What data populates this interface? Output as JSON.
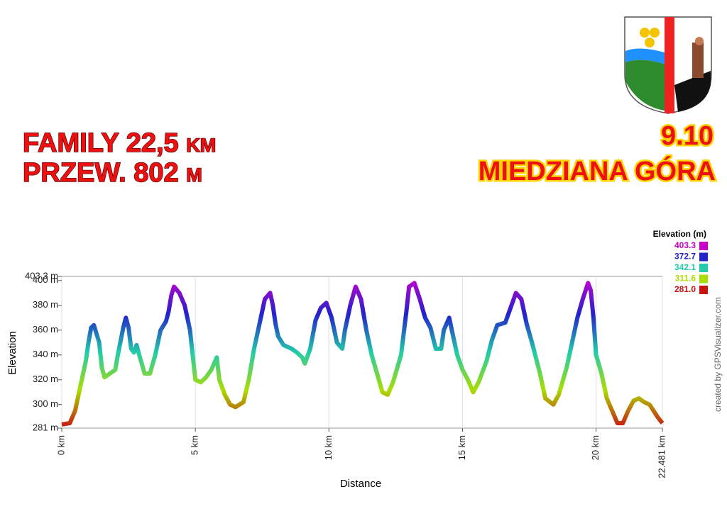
{
  "header": {
    "lines": [
      "FAMILY 22,5 km",
      "PRZEW. 802 m"
    ],
    "date": "9.10",
    "place": "MIEDZIANA GÓRA"
  },
  "chart_data": {
    "type": "line",
    "x_label": "Distance",
    "y_label": "Elevation",
    "credit": "created by GPSVisualizer.com",
    "xlim": [
      0,
      22.481
    ],
    "ylim": [
      281,
      403.3
    ],
    "grid": "x",
    "xticks": [
      {
        "value": 0,
        "label": "0 km"
      },
      {
        "value": 5,
        "label": "5 km"
      },
      {
        "value": 10,
        "label": "10 km"
      },
      {
        "value": 15,
        "label": "15 km"
      },
      {
        "value": 20,
        "label": "20 km"
      },
      {
        "value": 22.481,
        "label": "22.481 km"
      }
    ],
    "yticks": [
      {
        "value": 281,
        "label": "281 m"
      },
      {
        "value": 300,
        "label": "300 m"
      },
      {
        "value": 320,
        "label": "320 m"
      },
      {
        "value": 340,
        "label": "340 m"
      },
      {
        "value": 360,
        "label": "360 m"
      },
      {
        "value": 380,
        "label": "380 m"
      },
      {
        "value": 400,
        "label": "400 m"
      },
      {
        "value": 403.3,
        "label": "403.3 m"
      }
    ],
    "legend": {
      "title": "Elevation (m)",
      "entries": [
        {
          "value": 403.3,
          "color": "#cc00cc"
        },
        {
          "value": 372.7,
          "color": "#2222cc"
        },
        {
          "value": 342.1,
          "color": "#22ccaa"
        },
        {
          "value": 311.6,
          "color": "#aadd00"
        },
        {
          "value": 281,
          "label": "281.0",
          "color": "#cc1111"
        }
      ]
    },
    "x": [
      0,
      0.3,
      0.5,
      0.7,
      0.9,
      1.0,
      1.1,
      1.2,
      1.4,
      1.5,
      1.6,
      1.8,
      2.0,
      2.1,
      2.3,
      2.4,
      2.5,
      2.6,
      2.7,
      2.8,
      2.9,
      3.1,
      3.3,
      3.5,
      3.7,
      3.9,
      4.0,
      4.1,
      4.2,
      4.4,
      4.6,
      4.8,
      4.9,
      5.0,
      5.2,
      5.4,
      5.6,
      5.7,
      5.8,
      5.9,
      6.1,
      6.3,
      6.5,
      6.8,
      7.0,
      7.2,
      7.4,
      7.6,
      7.8,
      7.9,
      8.0,
      8.1,
      8.3,
      8.6,
      8.8,
      9.0,
      9.1,
      9.3,
      9.5,
      9.7,
      9.9,
      10.1,
      10.3,
      10.5,
      10.6,
      10.8,
      11.0,
      11.2,
      11.4,
      11.6,
      11.8,
      12.0,
      12.2,
      12.4,
      12.7,
      12.9,
      13.0,
      13.2,
      13.4,
      13.6,
      13.8,
      14.0,
      14.2,
      14.3,
      14.5,
      14.6,
      14.8,
      15.0,
      15.2,
      15.4,
      15.6,
      15.9,
      16.1,
      16.3,
      16.6,
      16.8,
      17.0,
      17.2,
      17.4,
      17.6,
      17.9,
      18.1,
      18.4,
      18.6,
      18.9,
      19.1,
      19.3,
      19.5,
      19.7,
      19.8,
      19.9,
      20.0,
      20.2,
      20.4,
      20.6,
      20.8,
      21.0,
      21.2,
      21.4,
      21.6,
      21.8,
      22.0,
      22.3,
      22.481
    ],
    "values": [
      284,
      285,
      295,
      315,
      335,
      350,
      362,
      364,
      350,
      330,
      322,
      325,
      328,
      340,
      362,
      370,
      362,
      345,
      342,
      348,
      340,
      325,
      325,
      340,
      360,
      367,
      375,
      388,
      395,
      390,
      380,
      360,
      340,
      320,
      318,
      322,
      328,
      333,
      338,
      320,
      308,
      300,
      298,
      302,
      320,
      345,
      365,
      385,
      390,
      380,
      365,
      355,
      348,
      345,
      342,
      338,
      333,
      345,
      368,
      378,
      382,
      370,
      350,
      345,
      360,
      380,
      395,
      385,
      360,
      340,
      325,
      310,
      308,
      318,
      340,
      375,
      395,
      398,
      385,
      370,
      362,
      345,
      345,
      360,
      370,
      360,
      340,
      328,
      320,
      310,
      318,
      335,
      352,
      364,
      366,
      378,
      390,
      385,
      365,
      350,
      325,
      305,
      300,
      308,
      330,
      350,
      370,
      385,
      398,
      392,
      370,
      340,
      325,
      305,
      295,
      285,
      285,
      295,
      303,
      305,
      302,
      300,
      290,
      285
    ]
  }
}
